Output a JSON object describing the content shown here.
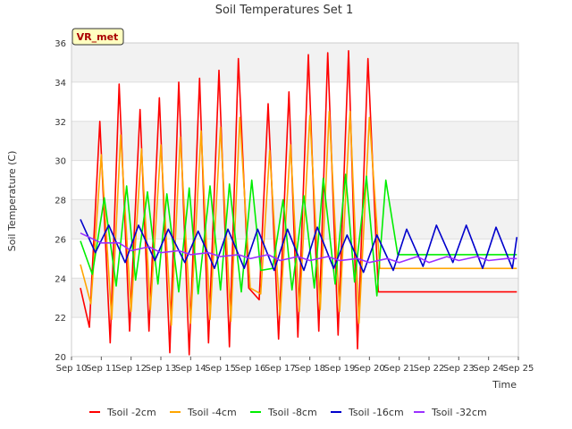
{
  "chart_data": {
    "type": "line",
    "title": "Soil Temperatures Set 1",
    "xlabel": "Time",
    "ylabel": "Soil Temperature (C)",
    "station_badge": "VR_met",
    "xlim": [
      10,
      25
    ],
    "ylim": [
      20,
      36
    ],
    "x_ticks": [
      {
        "value": 10,
        "label": "Sep 10"
      },
      {
        "value": 11,
        "label": "Sep 11"
      },
      {
        "value": 12,
        "label": "Sep 12"
      },
      {
        "value": 13,
        "label": "Sep 13"
      },
      {
        "value": 14,
        "label": "Sep 14"
      },
      {
        "value": 15,
        "label": "Sep 15"
      },
      {
        "value": 16,
        "label": "Sep 16"
      },
      {
        "value": 17,
        "label": "Sep 17"
      },
      {
        "value": 18,
        "label": "Sep 18"
      },
      {
        "value": 19,
        "label": "Sep 19"
      },
      {
        "value": 20,
        "label": "Sep 20"
      },
      {
        "value": 21,
        "label": "Sep 21"
      },
      {
        "value": 22,
        "label": "Sep 22"
      },
      {
        "value": 23,
        "label": "Sep 23"
      },
      {
        "value": 24,
        "label": "Sep 24"
      },
      {
        "value": 25,
        "label": "Sep 25"
      }
    ],
    "y_ticks": [
      {
        "value": 20,
        "label": "20"
      },
      {
        "value": 22,
        "label": "22"
      },
      {
        "value": 24,
        "label": "24"
      },
      {
        "value": 26,
        "label": "26"
      },
      {
        "value": 28,
        "label": "28"
      },
      {
        "value": 30,
        "label": "30"
      },
      {
        "value": 32,
        "label": "32"
      },
      {
        "value": 34,
        "label": "34"
      },
      {
        "value": 36,
        "label": "36"
      }
    ],
    "grid": true,
    "legend_position": "bottom",
    "series": [
      {
        "name": "Tsoil -2cm",
        "color": "#ff0000",
        "x": [
          10.3,
          10.6,
          10.95,
          11.3,
          11.6,
          11.95,
          12.3,
          12.6,
          12.95,
          13.3,
          13.6,
          13.95,
          14.3,
          14.6,
          14.95,
          15.3,
          15.6,
          15.95,
          16.3,
          16.6,
          16.95,
          17.3,
          17.6,
          17.95,
          18.3,
          18.6,
          18.95,
          19.3,
          19.6,
          19.95,
          20.3,
          20.6,
          20.95,
          21.3,
          21.6,
          21.95,
          22.3,
          22.6,
          22.95,
          23.3,
          23.6,
          23.95,
          24.3,
          24.6,
          24.9,
          24.95
        ],
        "y": [
          23.5,
          21.5,
          32.0,
          20.7,
          33.9,
          21.3,
          32.6,
          21.3,
          33.2,
          20.2,
          34.0,
          20.1,
          34.2,
          20.7,
          34.6,
          20.5,
          35.2,
          23.5,
          22.9,
          32.9,
          20.9,
          33.5,
          21.0,
          35.4,
          21.3,
          35.5,
          21.1,
          35.6,
          20.4,
          35.2,
          23.3,
          23.3,
          23.3,
          23.3,
          23.3,
          23.3,
          23.3,
          23.3,
          23.3,
          23.3,
          23.3,
          23.3,
          23.3,
          23.3,
          23.3,
          23.3
        ]
      },
      {
        "name": "Tsoil -4cm",
        "color": "#ffa500",
        "x": [
          10.3,
          10.65,
          11.0,
          11.35,
          11.65,
          12.0,
          12.35,
          12.65,
          13.0,
          13.35,
          13.65,
          14.0,
          14.35,
          14.65,
          15.0,
          15.35,
          15.65,
          16.0,
          16.35,
          16.65,
          17.0,
          17.35,
          17.65,
          18.0,
          18.35,
          18.65,
          19.0,
          19.35,
          19.65,
          20.0,
          20.35,
          20.65,
          21.0,
          21.35,
          21.65,
          22.0,
          22.35,
          22.65,
          23.0,
          23.35,
          23.65,
          24.0,
          24.35,
          24.6,
          24.8,
          24.95
        ],
        "y": [
          24.7,
          22.7,
          30.3,
          21.9,
          31.3,
          22.3,
          30.6,
          22.4,
          30.8,
          21.6,
          31.2,
          21.7,
          31.5,
          21.9,
          31.7,
          21.8,
          32.2,
          23.5,
          23.2,
          30.5,
          22.1,
          30.8,
          22.3,
          32.3,
          22.4,
          32.5,
          22.3,
          32.5,
          21.7,
          32.2,
          24.5,
          24.5,
          24.5,
          24.5,
          24.5,
          24.5,
          24.5,
          24.5,
          24.5,
          24.5,
          24.5,
          24.5,
          24.5,
          24.5,
          24.5,
          24.5
        ]
      },
      {
        "name": "Tsoil -8cm",
        "color": "#00ee00",
        "x": [
          10.3,
          10.7,
          11.1,
          11.5,
          11.85,
          12.15,
          12.55,
          12.9,
          13.2,
          13.6,
          13.95,
          14.25,
          14.65,
          15.0,
          15.3,
          15.7,
          16.05,
          16.35,
          16.75,
          17.1,
          17.4,
          17.8,
          18.15,
          18.45,
          18.85,
          19.2,
          19.5,
          19.9,
          20.25,
          20.55,
          20.95,
          21.25,
          21.6,
          21.9,
          22.3,
          22.65,
          22.95,
          23.35,
          23.7,
          24.0,
          24.4,
          24.75,
          24.95
        ],
        "y": [
          25.9,
          24.2,
          28.1,
          23.6,
          28.7,
          23.9,
          28.4,
          23.7,
          28.3,
          23.3,
          28.6,
          23.2,
          28.7,
          23.4,
          28.8,
          23.3,
          29.0,
          24.4,
          24.5,
          28.0,
          23.4,
          28.2,
          23.5,
          29.1,
          23.7,
          29.3,
          23.8,
          29.2,
          23.1,
          29.0,
          25.2,
          25.2,
          25.2,
          25.2,
          25.2,
          25.2,
          25.2,
          25.2,
          25.2,
          25.2,
          25.2,
          25.2,
          25.2
        ]
      },
      {
        "name": "Tsoil -16cm",
        "color": "#0000cc",
        "x": [
          10.3,
          10.8,
          11.25,
          11.8,
          12.25,
          12.8,
          13.25,
          13.8,
          14.25,
          14.8,
          15.25,
          15.8,
          16.25,
          16.8,
          17.25,
          17.8,
          18.25,
          18.8,
          19.25,
          19.8,
          20.25,
          20.8,
          21.25,
          21.8,
          22.25,
          22.8,
          23.25,
          23.8,
          24.25,
          24.8,
          24.95
        ],
        "y": [
          27.0,
          25.3,
          26.7,
          24.8,
          26.7,
          24.9,
          26.5,
          24.8,
          26.4,
          24.5,
          26.5,
          24.5,
          26.5,
          24.4,
          26.5,
          24.4,
          26.6,
          24.5,
          26.2,
          24.3,
          26.2,
          24.4,
          26.5,
          24.6,
          26.7,
          24.8,
          26.7,
          24.5,
          26.6,
          24.5,
          26.1
        ]
      },
      {
        "name": "Tsoil -32cm",
        "color": "#9b30ff",
        "x": [
          10.3,
          11.0,
          11.6,
          12.0,
          12.6,
          13.0,
          13.6,
          14.0,
          14.6,
          15.0,
          15.6,
          16.0,
          16.6,
          17.0,
          17.6,
          18.0,
          18.6,
          19.0,
          19.6,
          20.0,
          20.6,
          21.0,
          21.6,
          22.0,
          22.6,
          23.0,
          23.6,
          24.0,
          24.6,
          24.95
        ],
        "y": [
          26.3,
          25.8,
          25.8,
          25.4,
          25.6,
          25.3,
          25.4,
          25.2,
          25.3,
          25.1,
          25.2,
          25.0,
          25.2,
          24.9,
          25.1,
          24.9,
          25.1,
          24.9,
          25.0,
          24.8,
          25.0,
          24.8,
          25.1,
          24.8,
          25.1,
          24.9,
          25.1,
          24.9,
          25.0,
          25.0
        ]
      }
    ]
  }
}
